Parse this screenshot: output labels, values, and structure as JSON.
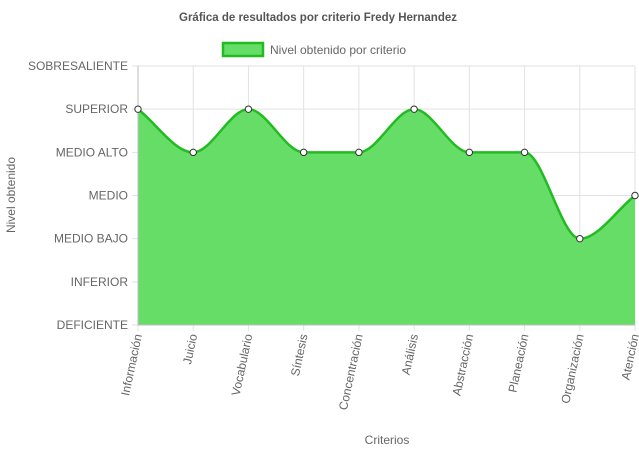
{
  "chart_data": {
    "type": "area",
    "title": "Gráfica de resultados por criterio Fredy Hernandez",
    "xlabel": "Criterios",
    "ylabel": "Nivel obtenido",
    "legend": {
      "position": "top-center"
    },
    "grid": true,
    "y_levels": [
      "DEFICIENTE",
      "INFERIOR",
      "MEDIO BAJO",
      "MEDIO",
      "MEDIO ALTO",
      "SUPERIOR",
      "SOBRESALIENTE"
    ],
    "ylim": [
      0,
      6
    ],
    "categories": [
      "Información",
      "Juicio",
      "Vocabulario",
      "Síntesis",
      "Concentración",
      "Análisis",
      "Abstracción",
      "Planeación",
      "Organización",
      "Atención"
    ],
    "series": [
      {
        "name": "Nivel obtenido por criterio",
        "values": [
          5,
          4,
          5,
          4,
          4,
          5,
          4,
          4,
          2,
          3
        ],
        "fill_color": "#66dd66",
        "line_color": "#22bb22"
      }
    ]
  }
}
